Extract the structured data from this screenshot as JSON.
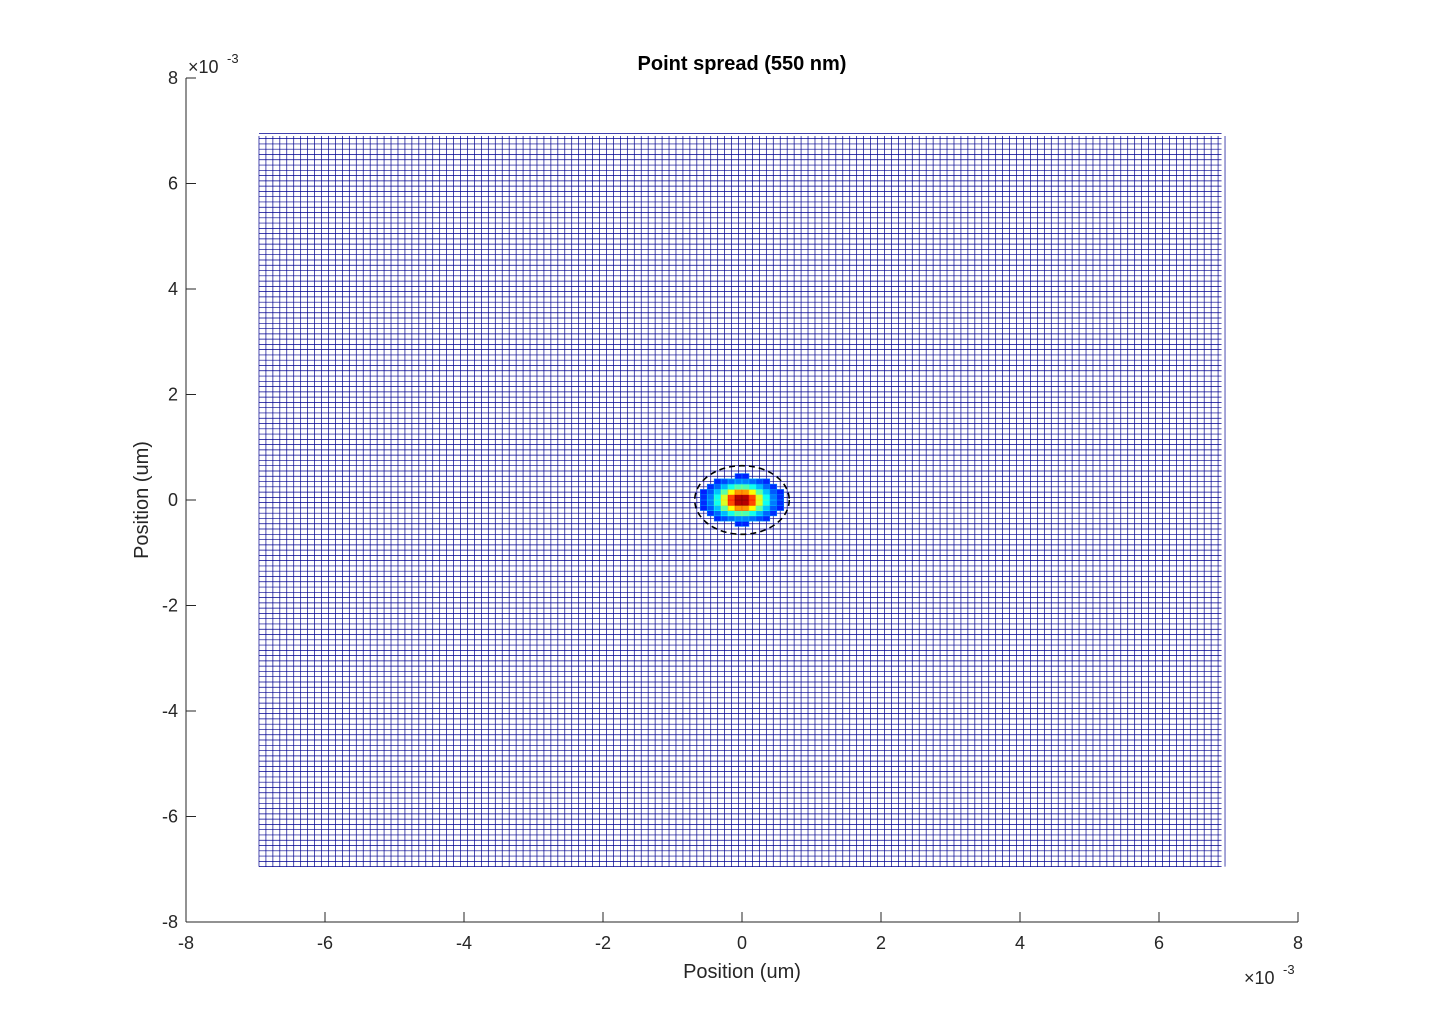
{
  "chart_data": {
    "type": "heatmap",
    "subtype": "mesh",
    "title": "Point spread (550 nm)",
    "xlabel": "Position (um)",
    "ylabel": "Position (um)",
    "x_exponent": {
      "base": "×10",
      "power": "-3"
    },
    "y_exponent": {
      "base": "×10",
      "power": "-3"
    },
    "xlim": [
      -8,
      8
    ],
    "ylim": [
      -8,
      8
    ],
    "xticks": [
      -8,
      -6,
      -4,
      -2,
      0,
      2,
      4,
      6,
      8
    ],
    "yticks": [
      -8,
      -6,
      -4,
      -2,
      0,
      2,
      4,
      6,
      8
    ],
    "xtick_labels": [
      "-8",
      "-6",
      "-4",
      "-2",
      "0",
      "2",
      "4",
      "6",
      "8"
    ],
    "ytick_labels": [
      "-8",
      "-6",
      "-4",
      "-2",
      "0",
      "2",
      "4",
      "6",
      "8"
    ],
    "mesh": {
      "x_range": [
        -6.95,
        6.9
      ],
      "y_range": [
        -6.95,
        6.9
      ],
      "grid_step": 0.1,
      "line_color": "#00008f",
      "background_color": "#ffffff"
    },
    "psf_peak": {
      "center": [
        0,
        0
      ],
      "sigma_x": 0.23,
      "sigma_y": 0.18,
      "peak_value": 1.0
    },
    "airy_ring": {
      "center": [
        0,
        0
      ],
      "radius_x": 0.68,
      "radius_y": 0.65,
      "style": "dashed",
      "color": "#000000"
    },
    "colormap": "jet",
    "grid": false,
    "legend": "none"
  }
}
